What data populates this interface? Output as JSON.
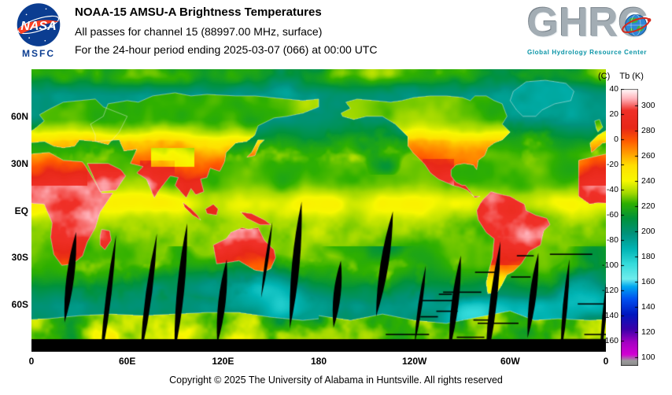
{
  "header": {
    "line1": "NOAA-15 AMSU-A Brightness Temperatures",
    "line2": "All passes for channel 15 (88997.00 MHz, surface)",
    "line3": "For the 24-hour period ending 2025-03-07 (066) at 00:00 UTC"
  },
  "nasa": {
    "wordmark": "NASA",
    "center_label": "MSFC"
  },
  "ghrc": {
    "wordmark_prefix": "GHR",
    "wordmark_c": "C",
    "tagline": "Global Hydrology Resource Center"
  },
  "map": {
    "lat_ticks": [
      {
        "label": "60N",
        "lat": 60
      },
      {
        "label": "30N",
        "lat": 30
      },
      {
        "label": "EQ",
        "lat": 0
      },
      {
        "label": "30S",
        "lat": -30
      },
      {
        "label": "60S",
        "lat": -60
      }
    ],
    "lon_ticks": [
      {
        "label": "0",
        "lon": 0
      },
      {
        "label": "60E",
        "lon": 60
      },
      {
        "label": "120E",
        "lon": 120
      },
      {
        "label": "180",
        "lon": 180
      },
      {
        "label": "120W",
        "lon": 240
      },
      {
        "label": "60W",
        "lon": 300
      },
      {
        "label": "0",
        "lon": 360
      }
    ]
  },
  "colorbar": {
    "unit_left": "(C)",
    "unit_right": "Tb (K)",
    "top_k": 313,
    "bottom_k": 93,
    "celsius_ticks": [
      40,
      20,
      0,
      -20,
      -40,
      -60,
      -80,
      -100,
      -120,
      -140,
      -160
    ],
    "kelvin_ticks": [
      300,
      280,
      260,
      240,
      220,
      200,
      180,
      160,
      140,
      120,
      100
    ],
    "palette": [
      [
        93,
        "#8a8a8a"
      ],
      [
        97,
        "#9c9c9c"
      ],
      [
        102,
        "#d400d4"
      ],
      [
        112,
        "#a400c4"
      ],
      [
        122,
        "#3c00aa"
      ],
      [
        134,
        "#0018c0"
      ],
      [
        146,
        "#0050f0"
      ],
      [
        156,
        "#00a8f0"
      ],
      [
        162,
        "#70eded"
      ],
      [
        174,
        "#35dcdc"
      ],
      [
        186,
        "#00b4b4"
      ],
      [
        198,
        "#00927c"
      ],
      [
        210,
        "#00923c"
      ],
      [
        222,
        "#2fb000"
      ],
      [
        230,
        "#a0d800"
      ],
      [
        240,
        "#f8f800"
      ],
      [
        252,
        "#ffe000"
      ],
      [
        262,
        "#ff9c00"
      ],
      [
        272,
        "#ff5a00"
      ],
      [
        282,
        "#e82818"
      ],
      [
        296,
        "#f03028"
      ],
      [
        305,
        "#ffb0b8"
      ],
      [
        313,
        "#ffffff"
      ]
    ]
  },
  "footer": {
    "copyright": "Copyright © 2025 The University of Alabama in Huntsville.  All rights reserved"
  }
}
